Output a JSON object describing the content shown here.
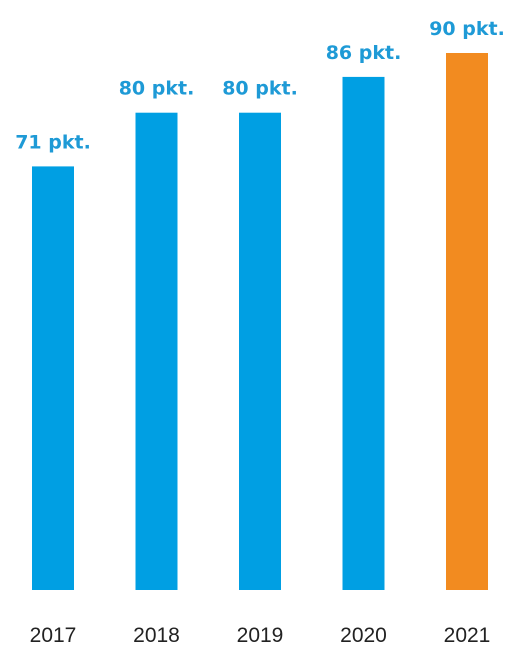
{
  "chart_data": {
    "type": "bar",
    "categories": [
      "2017",
      "2018",
      "2019",
      "2020",
      "2021"
    ],
    "values": [
      71,
      80,
      80,
      86,
      90
    ],
    "data_labels": [
      "71 pkt.",
      "80 pkt.",
      "80 pkt.",
      "86 pkt.",
      "90 pkt."
    ],
    "title": "",
    "xlabel": "",
    "ylabel": "",
    "ylim": [
      0,
      90
    ],
    "grid": false,
    "legend": "none",
    "colors": {
      "default": "#009fe3",
      "highlight": "#f28b20",
      "label_default": "#1e9ad6",
      "label_highlight": "#1e9ad6"
    },
    "highlight_index": 4
  }
}
